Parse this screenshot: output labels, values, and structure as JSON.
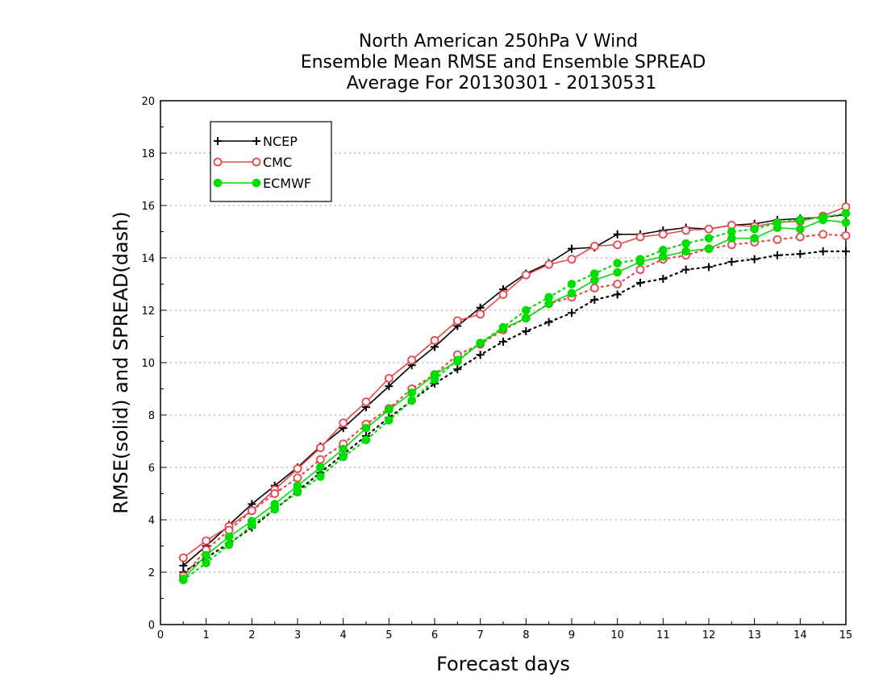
{
  "chart_data": {
    "type": "line",
    "title": [
      "North American 250hPa V Wind",
      "Ensemble Mean RMSE and Ensemble SPREAD",
      "Average For 20130301 - 20130531"
    ],
    "xlabel": "Forecast days",
    "ylabel": "RMSE(solid) and SPREAD(dash)",
    "xlim": [
      0,
      15
    ],
    "ylim": [
      0,
      20
    ],
    "xticks": [
      0,
      1,
      2,
      3,
      4,
      5,
      6,
      7,
      8,
      9,
      10,
      11,
      12,
      13,
      14,
      15
    ],
    "yticks": [
      0,
      2,
      4,
      6,
      8,
      10,
      12,
      14,
      16,
      18,
      20
    ],
    "grid": "horizontal dotted",
    "legend_position": "top-left",
    "x": [
      0.5,
      1,
      1.5,
      2,
      2.5,
      3,
      3.5,
      4,
      4.5,
      5,
      5.5,
      6,
      6.5,
      7,
      7.5,
      8,
      8.5,
      9,
      9.5,
      10,
      10.5,
      11,
      11.5,
      12,
      12.5,
      13,
      13.5,
      14,
      14.5,
      15
    ],
    "series": [
      {
        "name": "NCEP",
        "kind": "rmse",
        "style": "solid",
        "marker": "plus",
        "color": "#000000",
        "values": [
          2.25,
          3.0,
          3.8,
          4.6,
          5.3,
          6.0,
          6.8,
          7.5,
          8.3,
          9.1,
          9.9,
          10.6,
          11.4,
          12.1,
          12.8,
          13.4,
          13.8,
          14.35,
          14.4,
          14.9,
          14.9,
          15.05,
          15.15,
          15.1,
          15.25,
          15.3,
          15.45,
          15.5,
          15.55,
          15.65
        ]
      },
      {
        "name": "NCEP",
        "kind": "spread",
        "style": "dotted",
        "marker": "plus",
        "color": "#000000",
        "values": [
          2.0,
          2.55,
          3.1,
          3.7,
          4.4,
          5.1,
          5.8,
          6.5,
          7.2,
          7.9,
          8.55,
          9.2,
          9.75,
          10.3,
          10.8,
          11.2,
          11.55,
          11.9,
          12.4,
          12.6,
          13.05,
          13.2,
          13.55,
          13.65,
          13.85,
          13.95,
          14.1,
          14.15,
          14.25,
          14.25
        ]
      },
      {
        "name": "CMC",
        "kind": "rmse",
        "style": "solid",
        "marker": "circle",
        "color": "#e8474b",
        "values": [
          2.55,
          3.2,
          3.75,
          4.35,
          5.15,
          5.95,
          6.75,
          7.7,
          8.5,
          9.4,
          10.1,
          10.85,
          11.6,
          11.85,
          12.6,
          13.35,
          13.75,
          13.95,
          14.45,
          14.5,
          14.8,
          14.9,
          15.05,
          15.1,
          15.25,
          15.2,
          15.35,
          15.4,
          15.6,
          15.95
        ]
      },
      {
        "name": "CMC",
        "kind": "spread",
        "style": "dotted",
        "marker": "circle",
        "color": "#e8474b",
        "values": [
          1.85,
          2.85,
          3.6,
          4.35,
          5.0,
          5.6,
          6.3,
          6.9,
          7.65,
          8.25,
          9.0,
          9.55,
          10.3,
          10.7,
          11.25,
          11.7,
          12.25,
          12.5,
          12.85,
          13.0,
          13.55,
          13.95,
          14.1,
          14.35,
          14.5,
          14.6,
          14.7,
          14.8,
          14.9,
          14.85
        ]
      },
      {
        "name": "ECMWF",
        "kind": "rmse",
        "style": "solid",
        "marker": "dot",
        "color": "#00dd00",
        "values": [
          1.75,
          2.65,
          3.35,
          3.95,
          4.6,
          5.3,
          6.0,
          6.7,
          7.5,
          8.2,
          8.85,
          9.55,
          10.05,
          10.75,
          11.3,
          11.7,
          12.25,
          12.65,
          13.15,
          13.45,
          13.85,
          14.05,
          14.25,
          14.35,
          14.75,
          14.75,
          15.15,
          15.1,
          15.45,
          15.35
        ]
      },
      {
        "name": "ECMWF",
        "kind": "spread",
        "style": "dotted",
        "marker": "dot",
        "color": "#00dd00",
        "values": [
          1.7,
          2.35,
          3.05,
          3.8,
          4.4,
          5.05,
          5.65,
          6.4,
          7.05,
          7.8,
          8.55,
          9.35,
          10.1,
          10.75,
          11.35,
          12.0,
          12.5,
          13.0,
          13.4,
          13.8,
          13.95,
          14.3,
          14.55,
          14.75,
          15.0,
          15.1,
          15.35,
          15.45,
          15.55,
          15.7
        ]
      }
    ],
    "legend": [
      {
        "label": "NCEP",
        "marker": "plus",
        "color": "#000000"
      },
      {
        "label": "CMC",
        "marker": "circle",
        "color": "#e8474b"
      },
      {
        "label": "ECMWF",
        "marker": "dot",
        "color": "#00dd00"
      }
    ]
  }
}
